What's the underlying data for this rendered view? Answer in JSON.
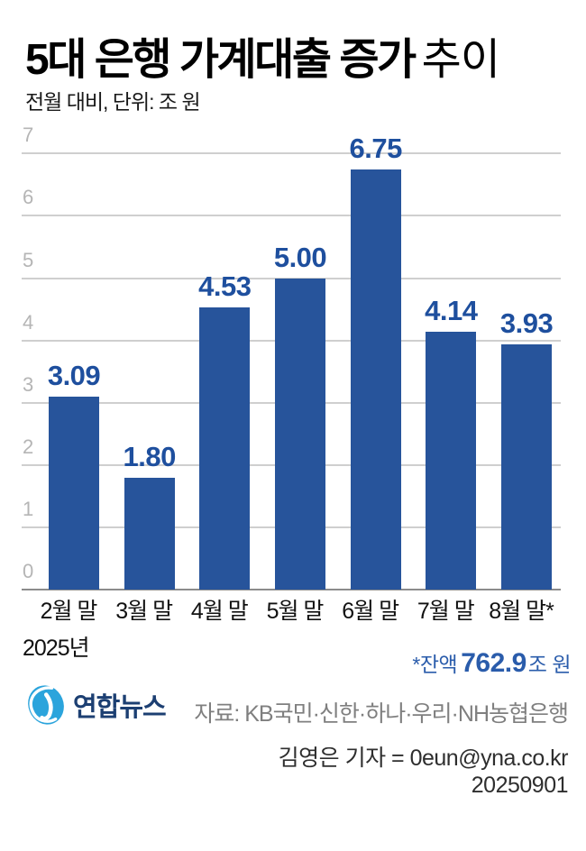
{
  "title": {
    "bold": "5대 은행 가계대출 증가",
    "light": "추이"
  },
  "subtitle": "전월 대비, 단위: 조 원",
  "chart_data": {
    "type": "bar",
    "categories": [
      "2월 말",
      "3월 말",
      "4월 말",
      "5월 말",
      "6월 말",
      "7월 말",
      "8월 말*"
    ],
    "values": [
      3.09,
      1.8,
      4.53,
      5.0,
      6.75,
      4.14,
      3.93
    ],
    "value_labels": [
      "3.09",
      "1.80",
      "4.53",
      "5.00",
      "6.75",
      "4.14",
      "3.93"
    ],
    "title": "5대 은행 가계대출 증가 추이",
    "xlabel": "",
    "ylabel": "단위: 조 원",
    "ylim": [
      0,
      7
    ],
    "yticks": [
      0,
      1,
      2,
      3,
      4,
      5,
      6,
      7
    ],
    "grid": true,
    "legend": "none",
    "bar_color": "#27549b",
    "value_label_color": "#1e4f9e"
  },
  "x_axis_year": "2025년",
  "balance_note": {
    "prefix": "*잔액",
    "value": "762.9",
    "suffix": "조 원"
  },
  "footer": {
    "logo_text": "연합뉴스",
    "source": "자료: KB국민·신한·하나·우리·NH농협은행",
    "byline": "김영은 기자 = 0eun@yna.co.kr",
    "date": "20250901"
  },
  "colors": {
    "bar": "#27549b",
    "value_label": "#1e4f9e",
    "note_blue": "#2a5cab",
    "tick_gray": "#b5b5b5",
    "gridline": "#cfcfcf",
    "axis_line": "#8c8c8c",
    "text_ink": "#111111",
    "source_gray": "#7f7f7f",
    "byline_gray": "#2e2e2e",
    "logo_blue": "#2ba4dc",
    "logo_navy": "#1c3f72"
  }
}
